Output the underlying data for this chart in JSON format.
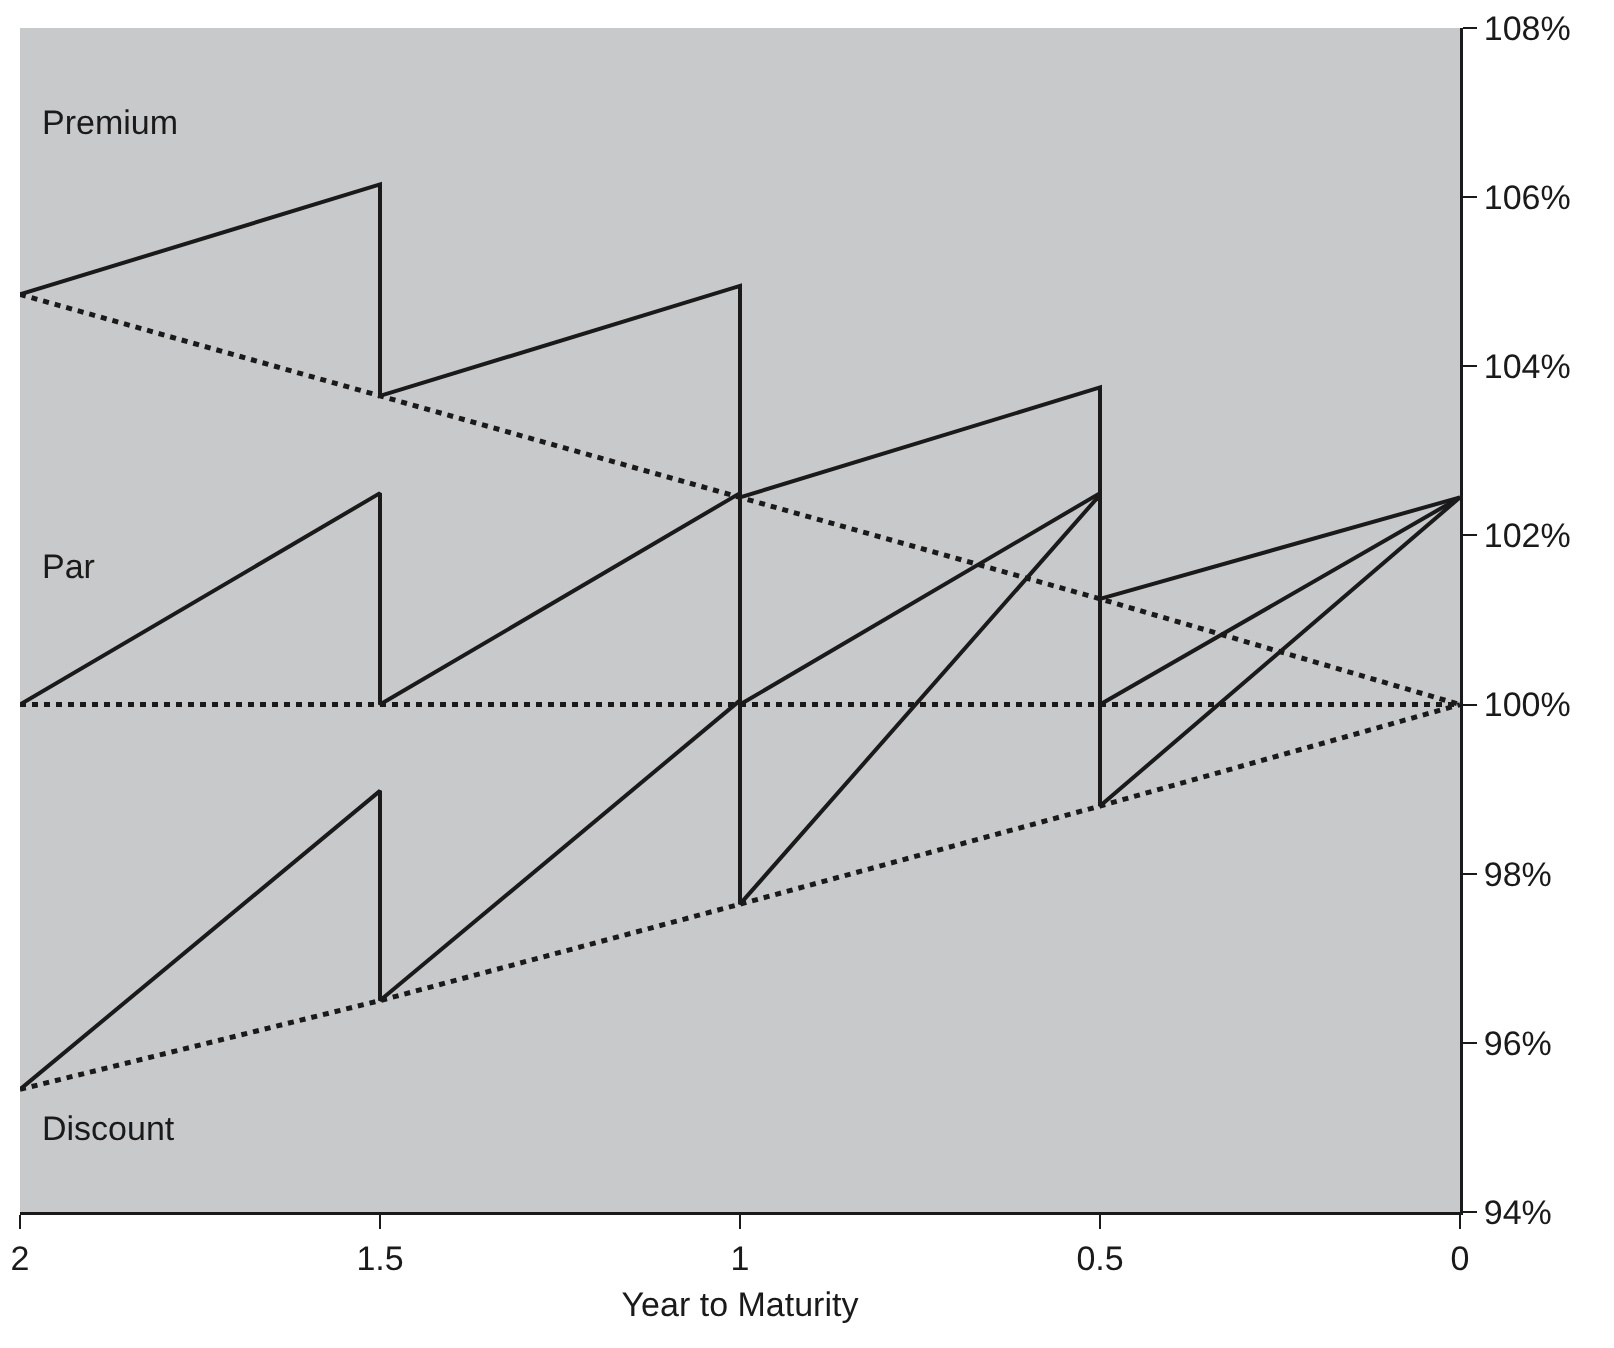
{
  "chart_data": {
    "type": "line",
    "xlabel": "Year to Maturity",
    "xlim": [
      2,
      0
    ],
    "xticks": [
      2,
      1.5,
      1,
      0.5,
      0
    ],
    "ylim": [
      94,
      108
    ],
    "yticks": [
      {
        "value": 94,
        "label": "94%"
      },
      {
        "value": 96,
        "label": "96%"
      },
      {
        "value": 98,
        "label": "98%"
      },
      {
        "value": 100,
        "label": "100%"
      },
      {
        "value": 102,
        "label": "102%"
      },
      {
        "value": 104,
        "label": "104%"
      },
      {
        "value": 106,
        "label": "106%"
      },
      {
        "value": 108,
        "label": "108%"
      }
    ],
    "grid": false,
    "marker": "none",
    "series": [
      {
        "color": "#1a1a1a",
        "line_style": "solid",
        "x": [
          2,
          1.5,
          1.5,
          1,
          1,
          0.5,
          0.5,
          0
        ],
        "values": [
          104.85,
          106.15,
          103.65,
          104.95,
          102.45,
          103.75,
          101.25,
          102.45
        ]
      },
      {
        "color": "#1a1a1a",
        "line_style": "dotted",
        "x": [
          2,
          1.5,
          1,
          0.5,
          0
        ],
        "values": [
          104.85,
          103.65,
          102.45,
          101.25,
          100
        ]
      },
      {
        "color": "#1a1a1a",
        "line_style": "solid",
        "x": [
          2,
          1.5,
          1.5,
          1,
          1,
          0.5,
          0.5,
          0
        ],
        "values": [
          100,
          102.5,
          100,
          102.5,
          100,
          102.5,
          100,
          102.45
        ]
      },
      {
        "color": "#1a1a1a",
        "line_style": "dotted",
        "x": [
          2,
          0
        ],
        "values": [
          100,
          100
        ]
      },
      {
        "color": "#1a1a1a",
        "line_style": "solid",
        "x": [
          2,
          1.5,
          1.5,
          1,
          1,
          0.5,
          0.5,
          0
        ],
        "values": [
          95.45,
          98.98,
          96.5,
          100.05,
          97.64,
          102.48,
          98.8,
          102.45
        ]
      },
      {
        "color": "#1a1a1a",
        "line_style": "dotted",
        "x": [
          2,
          1.5,
          1,
          0.5,
          0
        ],
        "values": [
          95.45,
          96.5,
          97.64,
          98.8,
          100
        ]
      }
    ],
    "annotations": [
      "Premium",
      "Par",
      "Discount"
    ]
  }
}
